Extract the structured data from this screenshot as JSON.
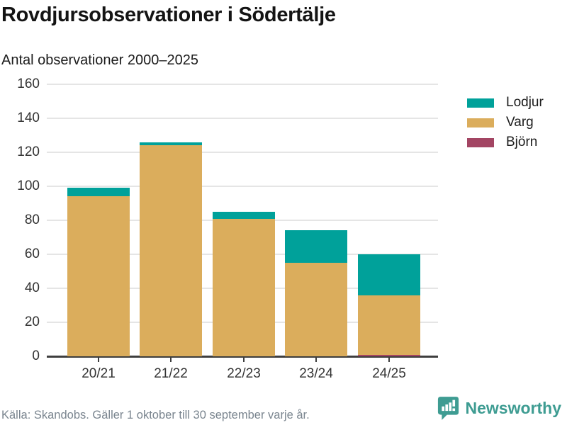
{
  "header": {
    "title": "Rovdjursobservationer i Södertälje",
    "subtitle": "Antal observationer 2000–2025"
  },
  "chart_data": {
    "type": "bar",
    "stacked": true,
    "title": "Rovdjursobservationer i Södertälje",
    "subtitle": "Antal observationer 2000–2025",
    "categories": [
      "20/21",
      "21/22",
      "22/23",
      "23/24",
      "24/25"
    ],
    "series": [
      {
        "name": "Lodjur",
        "color": "#00A19A",
        "values": [
          5,
          2,
          4,
          19,
          24
        ]
      },
      {
        "name": "Varg",
        "color": "#DBAD5C",
        "values": [
          94,
          124,
          81,
          55,
          35
        ]
      },
      {
        "name": "Björn",
        "color": "#A34563",
        "values": [
          0,
          0,
          0,
          0,
          1
        ]
      }
    ],
    "stack_order_bottom_to_top": [
      "Björn",
      "Varg",
      "Lodjur"
    ],
    "xlabel": "",
    "ylabel": "",
    "ylim": [
      0,
      160
    ],
    "yticks": [
      0,
      20,
      40,
      60,
      80,
      100,
      120,
      140,
      160
    ],
    "grid": true,
    "legend_position": "right"
  },
  "footer": {
    "source": "Källa: Skandobs. Gäller 1 oktober till 30 september varje år.",
    "brand": "Newsworthy"
  },
  "colors": {
    "lodjur": "#00A19A",
    "varg": "#DBAD5C",
    "bjorn": "#A34563",
    "brand_teal": "#3E9C92",
    "gridline": "#E5E5E5",
    "axis": "#3E3E3E",
    "source_text": "#7A858F"
  }
}
